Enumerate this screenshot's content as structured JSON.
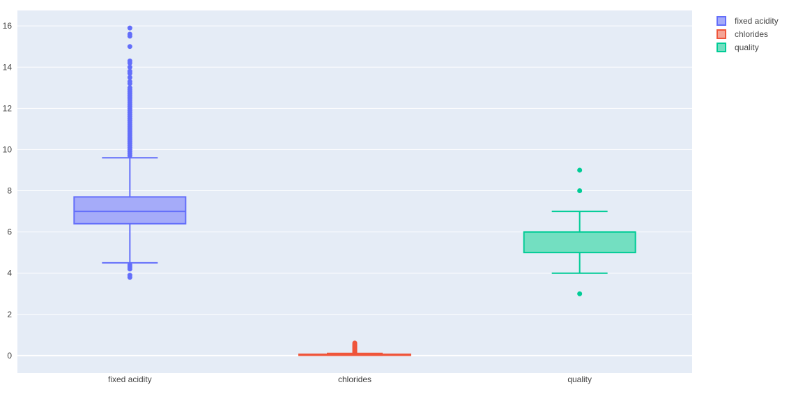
{
  "chart_data": {
    "type": "box",
    "title": "",
    "xlabel": "",
    "ylabel": "",
    "ylim": [
      -0.85,
      16.75
    ],
    "yticks": [
      0,
      2,
      4,
      6,
      8,
      10,
      12,
      14,
      16
    ],
    "categories": [
      "fixed acidity",
      "chlorides",
      "quality"
    ],
    "grid": true,
    "legend_position": "top-right",
    "series": [
      {
        "name": "fixed acidity",
        "color": "#636efa",
        "fill": "#a5abf9",
        "lower_fence": 4.5,
        "q1": 6.4,
        "median": 7.0,
        "q3": 7.7,
        "upper_fence": 9.6,
        "outliers": [
          3.8,
          3.9,
          4.2,
          4.3,
          4.4,
          9.7,
          9.8,
          9.9,
          10.0,
          10.1,
          10.2,
          10.3,
          10.4,
          10.5,
          10.6,
          10.7,
          10.8,
          10.9,
          11.0,
          11.1,
          11.2,
          11.3,
          11.4,
          11.5,
          11.6,
          11.7,
          11.8,
          11.9,
          12.0,
          12.1,
          12.2,
          12.3,
          12.4,
          12.5,
          12.6,
          12.7,
          12.8,
          12.9,
          13.0,
          13.2,
          13.3,
          13.5,
          13.7,
          13.8,
          14.0,
          14.2,
          14.3,
          15.0,
          15.5,
          15.6,
          15.9
        ]
      },
      {
        "name": "chlorides",
        "color": "#ef553b",
        "fill": "#f5a597",
        "lower_fence": 0.012,
        "q1": 0.038,
        "median": 0.047,
        "q3": 0.065,
        "upper_fence": 0.105,
        "outliers": [
          0.11,
          0.13,
          0.15,
          0.17,
          0.19,
          0.21,
          0.23,
          0.25,
          0.27,
          0.3,
          0.33,
          0.35,
          0.38,
          0.41,
          0.44,
          0.47,
          0.5,
          0.55,
          0.61
        ]
      },
      {
        "name": "quality",
        "color": "#00cc96",
        "fill": "#73dfc1",
        "lower_fence": 4,
        "q1": 5,
        "median": 6,
        "q3": 6,
        "upper_fence": 7,
        "outliers": [
          3,
          8,
          9
        ]
      }
    ]
  }
}
